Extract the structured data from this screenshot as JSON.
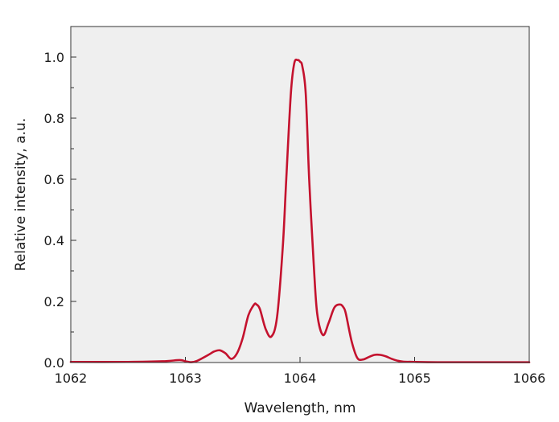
{
  "chart_data": {
    "type": "line",
    "xlabel": "Wavelength, nm",
    "ylabel": "Relative intensity, a.u.",
    "xlim": [
      1062,
      1066
    ],
    "ylim": [
      0,
      1.1
    ],
    "xticks": [
      1062,
      1063,
      1064,
      1065,
      1066
    ],
    "xtick_labels": [
      "1062",
      "1063",
      "1064",
      "1065",
      "1066"
    ],
    "yticks": [
      0.0,
      0.2,
      0.4,
      0.6,
      0.8,
      1.0
    ],
    "ytick_labels": [
      "0.0",
      "0.2",
      "0.4",
      "0.6",
      "0.8",
      "1.0"
    ],
    "grid": false,
    "plot_background": "#efefef",
    "series": [
      {
        "color": "#c4122e",
        "x": [
          1062.0,
          1062.5,
          1062.8,
          1062.95,
          1063.0,
          1063.05,
          1063.1,
          1063.2,
          1063.25,
          1063.3,
          1063.35,
          1063.4,
          1063.45,
          1063.5,
          1063.55,
          1063.6,
          1063.62,
          1063.65,
          1063.7,
          1063.75,
          1063.8,
          1063.85,
          1063.88,
          1063.92,
          1063.95,
          1063.98,
          1064.0,
          1064.02,
          1064.05,
          1064.08,
          1064.12,
          1064.15,
          1064.2,
          1064.25,
          1064.3,
          1064.35,
          1064.38,
          1064.4,
          1064.45,
          1064.5,
          1064.55,
          1064.6,
          1064.65,
          1064.7,
          1064.75,
          1064.8,
          1064.85,
          1064.9,
          1065.0,
          1065.2,
          1065.5,
          1066.0
        ],
        "y": [
          0.002,
          0.002,
          0.004,
          0.008,
          0.004,
          0.001,
          0.005,
          0.025,
          0.036,
          0.04,
          0.03,
          0.012,
          0.03,
          0.08,
          0.155,
          0.19,
          0.19,
          0.175,
          0.11,
          0.085,
          0.15,
          0.38,
          0.6,
          0.88,
          0.98,
          0.99,
          0.985,
          0.97,
          0.88,
          0.6,
          0.32,
          0.16,
          0.09,
          0.13,
          0.18,
          0.19,
          0.18,
          0.16,
          0.07,
          0.015,
          0.01,
          0.018,
          0.025,
          0.025,
          0.02,
          0.012,
          0.006,
          0.003,
          0.002,
          0.001,
          0.001,
          0.001
        ]
      }
    ]
  }
}
